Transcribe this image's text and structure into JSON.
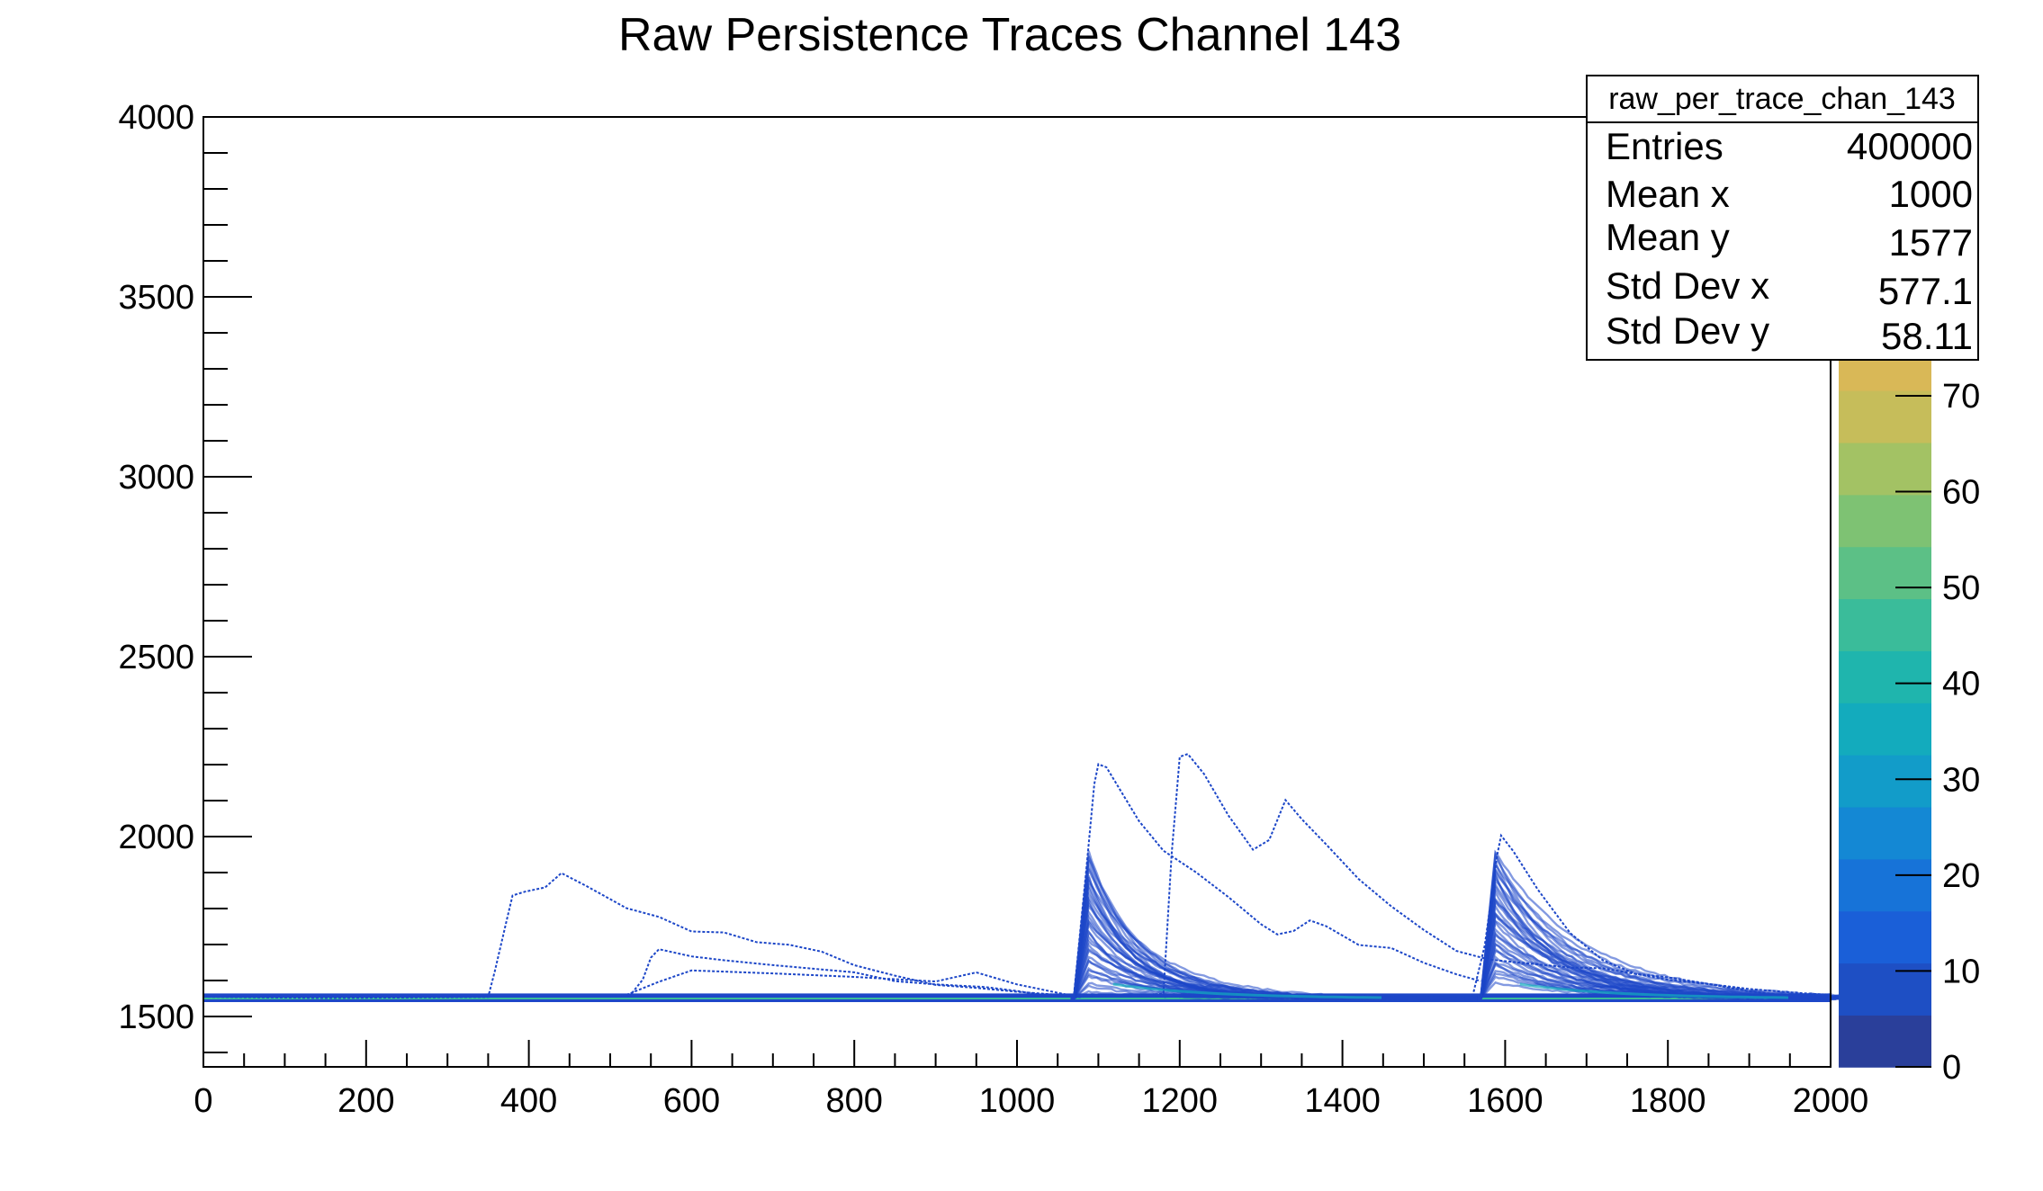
{
  "chart_data": {
    "type": "heatmap",
    "title": "Raw Persistence Traces Channel 143",
    "xlabel": "",
    "ylabel": "",
    "xlim": [
      0,
      2000
    ],
    "ylim": [
      1360,
      4000
    ],
    "x_ticks": [
      0,
      200,
      400,
      600,
      800,
      1000,
      1200,
      1400,
      1600,
      1800,
      2000
    ],
    "y_ticks": [
      1500,
      2000,
      2500,
      3000,
      3500,
      4000
    ],
    "grid": false,
    "colorbar": {
      "range": [
        0,
        76
      ],
      "ticks": [
        0,
        10,
        20,
        30,
        40,
        50,
        60,
        70
      ],
      "colors": [
        "#2a3f9a",
        "#1e4fc4",
        "#1a5fd8",
        "#1773d8",
        "#1488d4",
        "#129cc9",
        "#13abbd",
        "#1fb5ad",
        "#3abc9a",
        "#5cc086",
        "#7ec273",
        "#a3c264",
        "#c6bd5a",
        "#d9b857"
      ]
    },
    "stats": {
      "name": "raw_per_trace_chan_143",
      "entries": [
        {
          "label": "Entries",
          "value": "400000"
        },
        {
          "label": "Mean x",
          "value": "1000"
        },
        {
          "label": "Mean y",
          "value": "1577"
        },
        {
          "label": "Std Dev x",
          "value": "577.1"
        },
        {
          "label": "Std Dev y",
          "value": "58.11"
        }
      ]
    },
    "baseline": 1550,
    "trace_color": "#1d47c8",
    "traces": [
      {
        "x": [
          0,
          150,
          350,
          358,
          372,
          380,
          395,
          420,
          440,
          470,
          520,
          560,
          600,
          640,
          680,
          720,
          760,
          800,
          850,
          900,
          950,
          1000,
          1040,
          1070
        ],
        "y": [
          1555,
          1553,
          1556,
          1620,
          1760,
          1840,
          1850,
          1855,
          1900,
          1860,
          1800,
          1780,
          1740,
          1730,
          1710,
          1700,
          1680,
          1640,
          1610,
          1590,
          1580,
          1565,
          1560,
          1558
        ]
      },
      {
        "x": [
          500,
          525,
          540,
          550,
          560,
          600,
          640,
          700,
          760,
          800,
          850,
          900,
          960,
          1000,
          1040,
          1070
        ],
        "y": [
          1555,
          1558,
          1600,
          1660,
          1690,
          1670,
          1660,
          1640,
          1630,
          1620,
          1600,
          1590,
          1580,
          1570,
          1560,
          1556
        ]
      },
      {
        "x": [
          520,
          560,
          600,
          700,
          800,
          900,
          950,
          1000,
          1060
        ],
        "y": [
          1560,
          1600,
          1630,
          1620,
          1610,
          1600,
          1620,
          1590,
          1565
        ]
      },
      {
        "x": [
          1070,
          1085,
          1095,
          1100,
          1110,
          1150,
          1180,
          1220,
          1260,
          1300,
          1320,
          1340,
          1360,
          1380,
          1420,
          1460,
          1500,
          1540,
          1570
        ],
        "y": [
          1560,
          1900,
          2150,
          2200,
          2190,
          2040,
          1960,
          1900,
          1830,
          1760,
          1730,
          1740,
          1770,
          1750,
          1700,
          1690,
          1650,
          1620,
          1600
        ]
      },
      {
        "x": [
          1070,
          1100,
          1130,
          1150,
          1180,
          1190,
          1200,
          1210,
          1230,
          1260,
          1290,
          1310,
          1330,
          1350,
          1380,
          1420,
          1460,
          1500,
          1540,
          1580,
          1620,
          1680,
          1720,
          1760,
          1800,
          1850,
          1900,
          1950,
          2000
        ],
        "y": [
          1555,
          1560,
          1558,
          1556,
          1560,
          1950,
          2220,
          2230,
          2170,
          2060,
          1960,
          1990,
          2100,
          2050,
          1980,
          1880,
          1810,
          1740,
          1680,
          1660,
          1650,
          1640,
          1630,
          1620,
          1610,
          1590,
          1570,
          1560,
          1556
        ]
      },
      {
        "x": [
          1560,
          1575,
          1590,
          1595,
          1610,
          1640,
          1680,
          1720,
          1760,
          1800,
          1850,
          1900,
          1960,
          2000
        ],
        "y": [
          1560,
          1700,
          1950,
          2000,
          1960,
          1850,
          1730,
          1660,
          1620,
          1600,
          1590,
          1575,
          1562,
          1558
        ]
      }
    ],
    "pulses": [
      {
        "start": 1070,
        "peak_x": 1088,
        "peak_min": 1580,
        "peak_max": 1960,
        "decay": 70
      },
      {
        "start": 1570,
        "peak_x": 1588,
        "peak_min": 1600,
        "peak_max": 1960,
        "decay": 85
      }
    ]
  }
}
